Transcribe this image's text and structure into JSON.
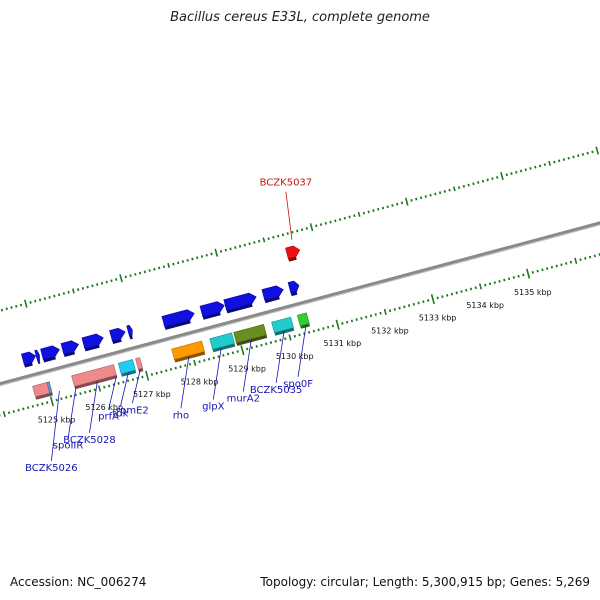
{
  "title": "Bacillus cereus E33L, complete genome",
  "footer": {
    "accession": "Accession: NC_006274",
    "summary": "Topology: circular; Length: 5,300,915 bp; Genes: 5,269"
  },
  "colors": {
    "background": "#ffffff",
    "backbone": "#8a8a8a",
    "ticks": "#1f7a1f",
    "label_default": "#1414b4",
    "label_highlight": "#cc1111"
  },
  "scale_labels": [
    "5125 kbp",
    "5126 kbp",
    "5127 kbp",
    "5128 kbp",
    "5129 kbp",
    "5130 kbp",
    "5131 kbp",
    "5132 kbp",
    "5133 kbp",
    "5134 kbp",
    "5135 kbp"
  ],
  "features": [
    {
      "row": "top",
      "s": -0.35,
      "e": -0.08,
      "color": "#1010e0"
    },
    {
      "row": "top",
      "s": -0.07,
      "e": 0.0,
      "color": "#1010e0"
    },
    {
      "row": "top",
      "s": 0.05,
      "e": 0.42,
      "color": "#1010e0"
    },
    {
      "row": "top",
      "s": 0.48,
      "e": 0.82,
      "color": "#1010e0"
    },
    {
      "row": "top",
      "s": 0.92,
      "e": 1.34,
      "color": "#1010e0"
    },
    {
      "row": "top",
      "s": 1.5,
      "e": 1.8,
      "color": "#1010e0"
    },
    {
      "row": "top",
      "s": 1.86,
      "e": 1.95,
      "color": "#1010e0"
    },
    {
      "row": "top",
      "s": 2.6,
      "e": 3.25,
      "color": "#1010e0"
    },
    {
      "row": "top",
      "s": 3.4,
      "e": 3.88,
      "color": "#1010e0"
    },
    {
      "row": "top",
      "s": 3.9,
      "e": 4.55,
      "color": "#1010e0"
    },
    {
      "row": "top",
      "s": 4.7,
      "e": 5.12,
      "color": "#1010e0"
    },
    {
      "row": "top",
      "s": 5.25,
      "e": 5.45,
      "color": "#1010e0"
    },
    {
      "row": "top",
      "s": 5.38,
      "e": 5.65,
      "color": "#ee1111",
      "ring": "outer"
    },
    {
      "row": "bottom",
      "s": -0.3,
      "e": 0.0,
      "color": "#f08a8a"
    },
    {
      "row": "bottom",
      "s": 0.0,
      "e": 0.05,
      "color": "#6699cc"
    },
    {
      "row": "bottom",
      "s": 0.52,
      "e": 1.4,
      "color": "#f08a8a"
    },
    {
      "row": "bottom",
      "s": 1.5,
      "e": 1.8,
      "color": "#22ccee"
    },
    {
      "row": "bottom",
      "s": 1.86,
      "e": 1.95,
      "color": "#f08a8a"
    },
    {
      "row": "bottom",
      "s": 2.62,
      "e": 3.25,
      "color": "#ff9900"
    },
    {
      "row": "bottom",
      "s": 3.42,
      "e": 3.88,
      "color": "#22cccc"
    },
    {
      "row": "bottom",
      "s": 3.92,
      "e": 4.55,
      "color": "#6b8e23"
    },
    {
      "row": "bottom",
      "s": 4.72,
      "e": 5.12,
      "color": "#22cccc"
    },
    {
      "row": "bottom",
      "s": 5.26,
      "e": 5.45,
      "color": "#33cc33"
    }
  ],
  "gene_labels": [
    {
      "text": "BCZK5026",
      "s": 0.2,
      "color": "#1414b4",
      "pos": "low"
    },
    {
      "text": "spoIIR",
      "s": 0.55,
      "color": "#1414b4",
      "pos": "mid"
    },
    {
      "text": "BCZK5028",
      "s": 1.0,
      "color": "#1414b4",
      "pos": "mid"
    },
    {
      "text": "prfA",
      "s": 1.4,
      "color": "#1414b4",
      "pos": "high"
    },
    {
      "text": "tdk",
      "s": 1.65,
      "color": "#1414b4",
      "pos": "high"
    },
    {
      "text": "rpmE2",
      "s": 1.9,
      "color": "#1414b4",
      "pos": "high"
    },
    {
      "text": "rho",
      "s": 2.92,
      "color": "#1414b4",
      "pos": "mid"
    },
    {
      "text": "glpX",
      "s": 3.6,
      "color": "#1414b4",
      "pos": "mid"
    },
    {
      "text": "murA2",
      "s": 4.23,
      "color": "#1414b4",
      "pos": "mid"
    },
    {
      "text": "BCZK5035",
      "s": 4.92,
      "color": "#1414b4",
      "pos": "mid"
    },
    {
      "text": "spo0F",
      "s": 5.38,
      "color": "#1414b4",
      "pos": "mid"
    },
    {
      "text": "BCZK5037",
      "s": 5.55,
      "color": "#cc1111",
      "pos": "top"
    }
  ]
}
